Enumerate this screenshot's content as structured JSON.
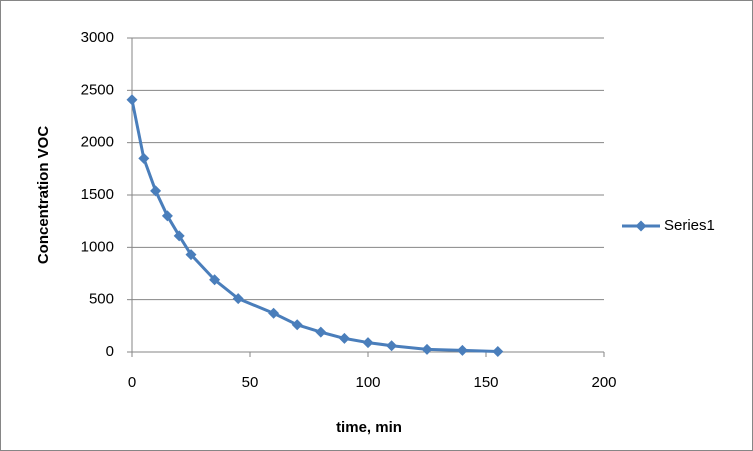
{
  "chart_data": {
    "type": "line",
    "x": [
      0,
      5,
      10,
      15,
      20,
      25,
      35,
      45,
      60,
      70,
      80,
      90,
      100,
      110,
      125,
      140,
      155
    ],
    "series": [
      {
        "name": "Series1",
        "color": "#4a7ebb",
        "values": [
          2410,
          1850,
          1540,
          1300,
          1110,
          930,
          690,
          510,
          370,
          260,
          190,
          130,
          90,
          60,
          25,
          15,
          5
        ]
      }
    ],
    "xlabel": "time, min",
    "ylabel": "Concentration VOC",
    "xlim": [
      0,
      200
    ],
    "xticks": [
      0,
      50,
      100,
      150,
      200
    ],
    "ylim": [
      0,
      3000
    ],
    "yticks": [
      0,
      500,
      1000,
      1500,
      2000,
      2500,
      3000
    ],
    "grid": true,
    "legend": "right"
  }
}
